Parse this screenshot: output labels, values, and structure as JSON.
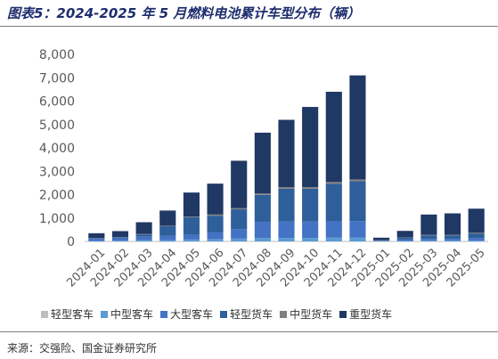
{
  "header": {
    "title": "图表5：2024-2025 年 5 月燃料电池累计车型分布（辆）"
  },
  "footer": {
    "source": "来源：交强险、国金证券研究所"
  },
  "chart_data": {
    "type": "bar",
    "stacked": true,
    "title": "图表5：2024-2025 年 5 月燃料电池累计车型分布（辆）",
    "xlabel": "",
    "ylabel": "",
    "ylim": [
      0,
      8000
    ],
    "yticks": [
      "0",
      "1,000",
      "2,000",
      "3,000",
      "4,000",
      "5,000",
      "6,000",
      "7,000",
      "8,000"
    ],
    "ytick_values": [
      0,
      1000,
      2000,
      3000,
      4000,
      5000,
      6000,
      7000,
      8000
    ],
    "grid": false,
    "legend_position": "bottom",
    "categories": [
      "2024-01",
      "2024-02",
      "2024-03",
      "2024-04",
      "2024-05",
      "2024-06",
      "2024-07",
      "2024-08",
      "2024-09",
      "2024-10",
      "2024-11",
      "2024-12",
      "2025-01",
      "2025-02",
      "2025-03",
      "2025-04",
      "2025-05"
    ],
    "series": [
      {
        "name": "轻型客车",
        "color": "#bfbfbf",
        "values": [
          0,
          0,
          0,
          0,
          0,
          0,
          0,
          0,
          0,
          0,
          0,
          0,
          0,
          0,
          0,
          0,
          0
        ]
      },
      {
        "name": "中型客车",
        "color": "#5b9bd5",
        "values": [
          20,
          30,
          50,
          50,
          80,
          100,
          120,
          140,
          150,
          150,
          160,
          170,
          10,
          20,
          30,
          30,
          40
        ]
      },
      {
        "name": "大型客车",
        "color": "#4472c4",
        "values": [
          80,
          100,
          150,
          200,
          200,
          300,
          400,
          700,
          700,
          700,
          700,
          700,
          20,
          60,
          80,
          80,
          100
        ]
      },
      {
        "name": "轻型货车",
        "color": "#2e5f9a",
        "values": [
          40,
          50,
          100,
          400,
          750,
          700,
          850,
          1150,
          1400,
          1400,
          1600,
          1700,
          20,
          80,
          150,
          150,
          200
        ]
      },
      {
        "name": "中型货车",
        "color": "#808080",
        "values": [
          10,
          10,
          20,
          20,
          30,
          50,
          50,
          60,
          70,
          70,
          80,
          80,
          5,
          10,
          20,
          20,
          30
        ]
      },
      {
        "name": "重型货车",
        "color": "#203864",
        "values": [
          200,
          250,
          500,
          650,
          1030,
          1320,
          2030,
          2600,
          2880,
          3430,
          3860,
          4450,
          105,
          280,
          870,
          920,
          1030
        ]
      }
    ]
  }
}
